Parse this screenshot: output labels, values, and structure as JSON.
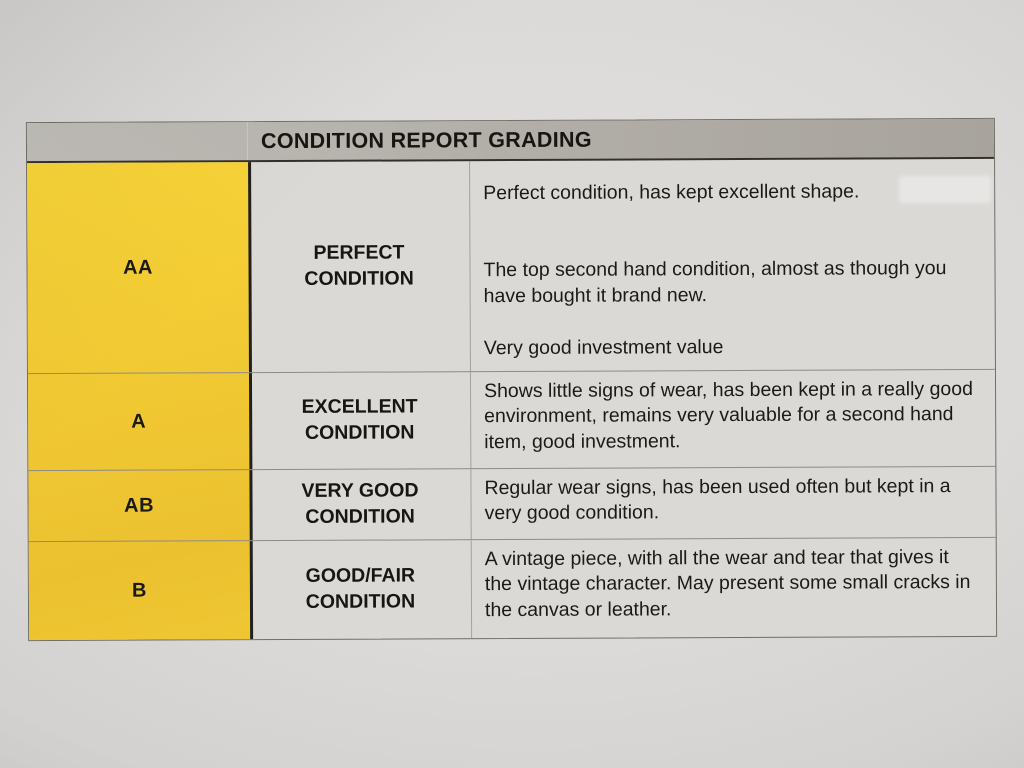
{
  "table": {
    "title": "CONDITION REPORT GRADING",
    "rows": [
      {
        "grade": "AA",
        "condition": "PERFECT CONDITION",
        "description_paragraphs": [
          "Perfect condition, has kept excellent shape.",
          "The top second hand condition, almost as though you have bought it brand new.",
          "Very good investment value"
        ]
      },
      {
        "grade": "A",
        "condition": "EXCELLENT CONDITION",
        "description_paragraphs": [
          "Shows little signs of wear, has been kept in a really good environment, remains very valuable for a second hand item, good investment."
        ]
      },
      {
        "grade": "AB",
        "condition": "VERY GOOD CONDITION",
        "description_paragraphs": [
          "Regular wear signs, has been used often but kept in a very good condition."
        ]
      },
      {
        "grade": "B",
        "condition": "GOOD/FAIR CONDITION",
        "description_paragraphs": [
          "A vintage piece, with all the wear and tear that gives it the vintage character. May present some small cracks in the canvas or leather."
        ]
      }
    ],
    "colors": {
      "paper": "#DCDAD8",
      "header_bar": "#B3AFA9",
      "grade_column_yellow": "#F2C92E",
      "cell_background": "#DBD9D6",
      "text": "#1B1A18",
      "heavy_divider": "#23201B",
      "light_divider": "#8F8B85"
    }
  }
}
